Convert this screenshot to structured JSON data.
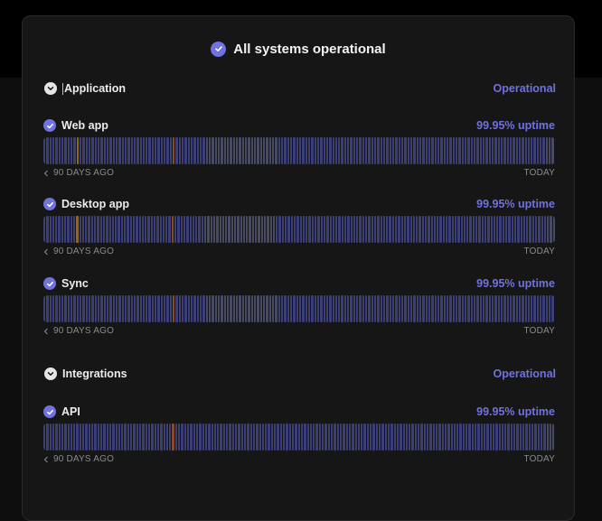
{
  "header": {
    "title": "All systems operational"
  },
  "groups": [
    {
      "label": "Application",
      "status": "Operational"
    },
    {
      "label": "Integrations",
      "status": "Operational"
    }
  ],
  "services": [
    {
      "name": "Web app",
      "uptime": "99.95% uptime",
      "start": "90 DAYS AGO",
      "end": "TODAY",
      "days": "nnnnnnnnnnnynnnnnnnnnnnnnnnnnnnnnnnnnnnnnnnonnnnnnnnnnggggggggggggggggggggggggnnnnnnnnnnnnnnnnnnnnnnnnnnnnnnnnnnnnnnnnnnnnnnnnnnnnnnnnnnnnnnnnnnnnnnnnnnnnnnnnnnnnnnnnnggg"
    },
    {
      "name": "Desktop app",
      "uptime": "99.95% uptime",
      "start": "90 DAYS AGO",
      "end": "TODAY",
      "days": "nnnnnnnnnnnynnnnnnnnnnnnnnnnnnnnnnnnnnnnnnnonnnnnnnnnnggggggggggggggggggggggggnnnnnnnnnnnnnnnnnnnnnnnnnnnnnnnnnnnnnnnnnnnnnnnnnnnnnnnnnnnnnnnnnnnnnnnnnnnnnnnnnnnnnnnnnnnggg"
    },
    {
      "name": "Sync",
      "uptime": "99.95% uptime",
      "start": "90 DAYS AGO",
      "end": "TODAY",
      "days": "nnnnnnnnnnnnnnnnnnnnnnnnnnnnnnnnnnnnnnnnnnnonnnnnnnnnnggggggggggggggggggggggggnnnnnnnnnnnnnnnnnnnnnnnnnnnnnnnnnnnnnnnnnnnnnnnnnnnnnnnnnnnnnnnnnnnnnnnnnnnnnnnnnnnnnnnnnnnn"
    },
    {
      "name": "API",
      "uptime": "99.95% uptime",
      "start": "90 DAYS AGO",
      "end": "TODAY",
      "days": "nnnnnnnnnnnnnnnnnnnnnnnnnnnnnnnnnnnnnnnnnnnonnnnnnnnnnnnnnnnnnnnnnnnnnnnnnnnnnnnnnnnnnnnnnnnnnnnnnnnnnnnnnnnnnnnnnnnnnnnnnnnnnnnnnnnnnnnnnnnnnnnnnnnnnnnnnnnnnnnnnnnnnnnggg"
    }
  ],
  "colors": {
    "accent": "#6f72df",
    "bar_normal": "#3b3f76",
    "bar_gray": "#484a61",
    "bar_warning": "#8a6a2c",
    "bar_outage": "#8a4a28",
    "card": "#161616"
  },
  "icons": {
    "status": "check-circle-icon",
    "collapse": "chevron-down-icon",
    "back": "chevron-left-icon"
  }
}
